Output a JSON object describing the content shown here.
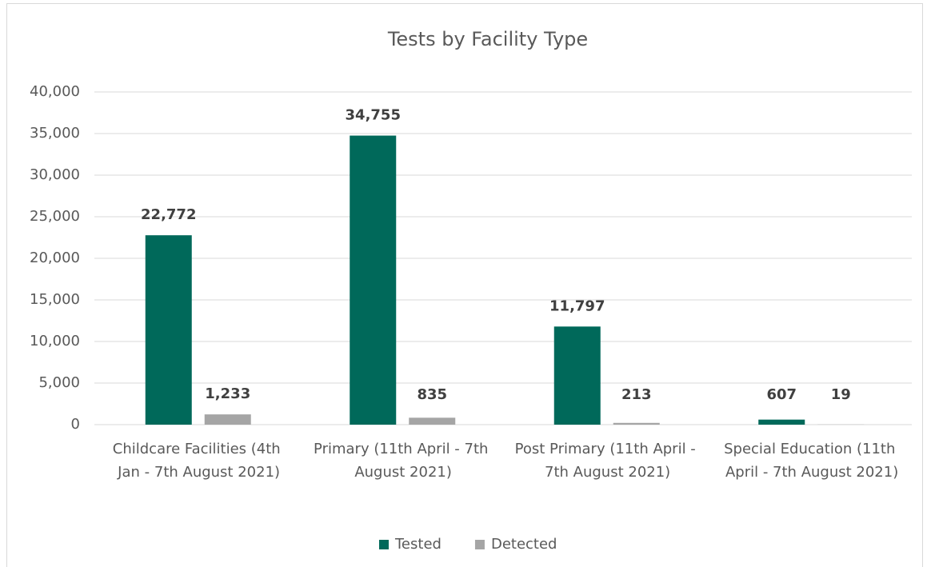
{
  "chart_data": {
    "type": "bar",
    "title": "Tests by Facility Type",
    "categories": [
      "Childcare Facilities (4th Jan - 7th August 2021)",
      "Primary (11th April - 7th August 2021)",
      "Post Primary (11th April - 7th August 2021)",
      "Special Education (11th April - 7th August 2021)"
    ],
    "series": [
      {
        "name": "Tested",
        "color": "#00695a",
        "values": [
          22772,
          34755,
          11797,
          607
        ],
        "value_labels": [
          "22,772",
          "34,755",
          "11,797",
          "607"
        ]
      },
      {
        "name": "Detected",
        "color": "#a5a5a5",
        "values": [
          1233,
          835,
          213,
          19
        ],
        "value_labels": [
          "1,233",
          "835",
          "213",
          "19"
        ]
      }
    ],
    "ylim": [
      0,
      40000
    ],
    "yticks": [
      0,
      {
        "value": 5000,
        "label": "5,000"
      },
      {
        "value": 10000,
        "label": "10,000"
      },
      {
        "value": 15000,
        "label": "15,000"
      },
      {
        "value": 20000,
        "label": "20,000"
      },
      {
        "value": 25000,
        "label": "25,000"
      },
      {
        "value": 30000,
        "label": "30,000"
      },
      {
        "value": 35000,
        "label": "35,000"
      },
      {
        "value": 40000,
        "label": "40,000"
      }
    ],
    "grid": true,
    "legend": "bottom"
  }
}
